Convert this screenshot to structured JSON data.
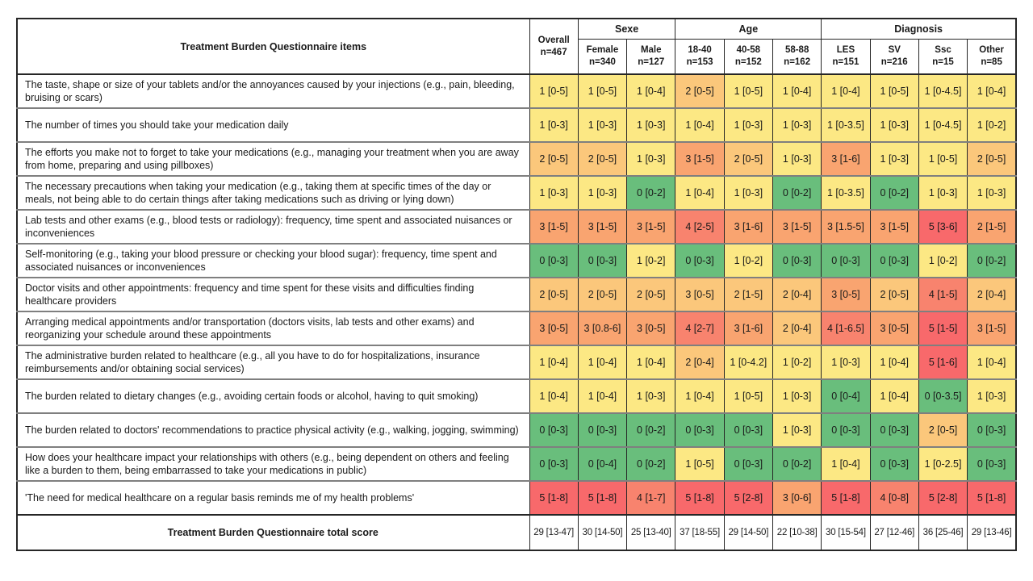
{
  "chart_data": {
    "type": "table",
    "subtype": "heatmap-table",
    "title": "Treatment Burden Questionnaire items",
    "palette": {
      "g": "#69BE7C",
      "y": "#FCE884",
      "lo": "#FBC77B",
      "o": "#F9A470",
      "s": "#F8836E",
      "r": "#F8696B",
      "w": "#FFFFFF"
    },
    "header": {
      "items_col": "Treatment Burden Questionnaire items",
      "overall": {
        "label": "Overall",
        "n": "n=467"
      },
      "groups": [
        {
          "label": "Sexe",
          "columns": [
            {
              "label": "Female",
              "n": "n=340"
            },
            {
              "label": "Male",
              "n": "n=127"
            }
          ]
        },
        {
          "label": "Age",
          "columns": [
            {
              "label": "18-40",
              "n": "n=153"
            },
            {
              "label": "40-58",
              "n": "n=152"
            },
            {
              "label": "58-88",
              "n": "n=162"
            }
          ]
        },
        {
          "label": "Diagnosis",
          "columns": [
            {
              "label": "LES",
              "n": "n=151"
            },
            {
              "label": "SV",
              "n": "n=216"
            },
            {
              "label": "Ssc",
              "n": "n=15"
            },
            {
              "label": "Other",
              "n": "n=85"
            }
          ]
        }
      ]
    },
    "rows": [
      {
        "item": "The taste, shape or size of your tablets and/or the annoyances caused by your injections (e.g., pain, bleeding, bruising or scars)",
        "values": [
          "1 [0-5]",
          "1 [0-5]",
          "1 [0-4]",
          "2 [0-5]",
          "1 [0-5]",
          "1 [0-4]",
          "1 [0-4]",
          "1 [0-5]",
          "1 [0-4.5]",
          "1 [0-4]"
        ],
        "colors": [
          "y",
          "y",
          "y",
          "lo",
          "y",
          "y",
          "y",
          "y",
          "y",
          "y"
        ]
      },
      {
        "item": "The number of times you should take your medication daily",
        "values": [
          "1 [0-3]",
          "1 [0-3]",
          "1 [0-3]",
          "1 [0-4]",
          "1 [0-3]",
          "1 [0-3]",
          "1 [0-3.5]",
          "1 [0-3]",
          "1 [0-4.5]",
          "1 [0-2]"
        ],
        "colors": [
          "y",
          "y",
          "y",
          "y",
          "y",
          "y",
          "y",
          "y",
          "y",
          "y"
        ]
      },
      {
        "item": "The efforts you make not to forget to take your medications (e.g., managing your treatment when you are away from home, preparing and using pillboxes)",
        "values": [
          "2 [0-5]",
          "2 [0-5]",
          "1 [0-3]",
          "3 [1-5]",
          "2 [0-5]",
          "1 [0-3]",
          "3 [1-6]",
          "1 [0-3]",
          "1 [0-5]",
          "2 [0-5]"
        ],
        "colors": [
          "lo",
          "lo",
          "y",
          "o",
          "lo",
          "y",
          "o",
          "y",
          "y",
          "lo"
        ]
      },
      {
        "item": "The necessary precautions when taking your medication (e.g., taking them at specific times of the day or meals, not being able to do certain things after taking medications such as driving or lying down)",
        "values": [
          "1 [0-3]",
          "1 [0-3]",
          "0 [0-2]",
          "1 [0-4]",
          "1 [0-3]",
          "0 [0-2]",
          "1 [0-3.5]",
          "0 [0-2]",
          "1 [0-3]",
          "1 [0-3]"
        ],
        "colors": [
          "y",
          "y",
          "g",
          "y",
          "y",
          "g",
          "y",
          "g",
          "y",
          "y"
        ]
      },
      {
        "item": "Lab tests and other exams (e.g., blood tests or radiology): frequency, time spent and associated nuisances or inconveniences",
        "values": [
          "3 [1-5]",
          "3 [1-5]",
          "3 [1-5]",
          "4 [2-5]",
          "3 [1-6]",
          "3 [1-5]",
          "3 [1.5-5]",
          "3 [1-5]",
          "5 [3-6]",
          "2 [1-5]"
        ],
        "colors": [
          "o",
          "o",
          "o",
          "s",
          "o",
          "o",
          "o",
          "o",
          "r",
          "o"
        ]
      },
      {
        "item": "Self-monitoring (e.g., taking your blood pressure or checking your blood sugar): frequency, time spent and associated nuisances or inconveniences",
        "values": [
          "0 [0-3]",
          "0 [0-3]",
          "1 [0-2]",
          "0 [0-3]",
          "1 [0-2]",
          "0 [0-3]",
          "0 [0-3]",
          "0 [0-3]",
          "1 [0-2]",
          "0 [0-2]"
        ],
        "colors": [
          "g",
          "g",
          "y",
          "g",
          "y",
          "g",
          "g",
          "g",
          "y",
          "g"
        ]
      },
      {
        "item": "Doctor visits and other appointments: frequency and time spent for these visits and difficulties finding healthcare providers",
        "values": [
          "2 [0-5]",
          "2 [0-5]",
          "2 [0-5]",
          "3 [0-5]",
          "2 [1-5]",
          "2 [0-4]",
          "3 [0-5]",
          "2 [0-5]",
          "4 [1-5]",
          "2 [0-4]"
        ],
        "colors": [
          "lo",
          "lo",
          "lo",
          "lo",
          "lo",
          "lo",
          "o",
          "lo",
          "s",
          "lo"
        ]
      },
      {
        "item": "Arranging medical appointments and/or transportation (doctors visits, lab tests and other exams) and reorganizing your schedule around these appointments",
        "values": [
          "3 [0-5]",
          "3 [0.8-6]",
          "3 [0-5]",
          "4 [2-7]",
          "3 [1-6]",
          "2 [0-4]",
          "4 [1-6.5]",
          "3 [0-5]",
          "5 [1-5]",
          "3 [1-5]"
        ],
        "colors": [
          "o",
          "o",
          "o",
          "s",
          "o",
          "lo",
          "s",
          "o",
          "r",
          "o"
        ]
      },
      {
        "item": "The administrative burden related to healthcare (e.g., all you have to do for hospitalizations, insurance reimbursements and/or obtaining social services)",
        "values": [
          "1 [0-4]",
          "1 [0-4]",
          "1 [0-4]",
          "2 [0-4]",
          "1 [0-4.2]",
          "1 [0-2]",
          "1 [0-3]",
          "1 [0-4]",
          "5 [1-6]",
          "1 [0-4]"
        ],
        "colors": [
          "y",
          "y",
          "y",
          "lo",
          "y",
          "y",
          "y",
          "y",
          "r",
          "y"
        ]
      },
      {
        "item": "The burden related to dietary changes (e.g., avoiding certain foods or alcohol, having to quit smoking)",
        "values": [
          "1 [0-4]",
          "1 [0-4]",
          "1 [0-3]",
          "1 [0-4]",
          "1 [0-5]",
          "1 [0-3]",
          "0 [0-4]",
          "1 [0-4]",
          "0 [0-3.5]",
          "1 [0-3]"
        ],
        "colors": [
          "y",
          "y",
          "y",
          "y",
          "y",
          "y",
          "g",
          "y",
          "g",
          "y"
        ]
      },
      {
        "item": "The burden related to doctors' recommendations to practice physical activity (e.g., walking, jogging, swimming)",
        "values": [
          "0 [0-3]",
          "0 [0-3]",
          "0 [0-2]",
          "0 [0-3]",
          "0 [0-3]",
          "1 [0-3]",
          "0 [0-3]",
          "0 [0-3]",
          "2 [0-5]",
          "0 [0-3]"
        ],
        "colors": [
          "g",
          "g",
          "g",
          "g",
          "g",
          "y",
          "g",
          "g",
          "lo",
          "g"
        ]
      },
      {
        "item": "How does your healthcare impact your relationships with others (e.g., being dependent on others and feeling like a burden to them, being embarrassed to take your medications in public)",
        "values": [
          "0 [0-3]",
          "0 [0-4]",
          "0 [0-2]",
          "1 [0-5]",
          "0 [0-3]",
          "0 [0-2]",
          "1 [0-4]",
          "0 [0-3]",
          "1 [0-2.5]",
          "0 [0-3]"
        ],
        "colors": [
          "g",
          "g",
          "g",
          "y",
          "g",
          "g",
          "y",
          "g",
          "y",
          "g"
        ]
      },
      {
        "item": "'The need for medical healthcare on a regular basis reminds me of my health problems'",
        "values": [
          "5 [1-8]",
          "5 [1-8]",
          "4 [1-7]",
          "5 [1-8]",
          "5 [2-8]",
          "3 [0-6]",
          "5 [1-8]",
          "4 [0-8]",
          "5 [2-8]",
          "5 [1-8]"
        ],
        "colors": [
          "r",
          "r",
          "s",
          "r",
          "r",
          "o",
          "r",
          "s",
          "r",
          "r"
        ]
      }
    ],
    "total_row": {
      "label": "Treatment Burden Questionnaire total score",
      "values": [
        "29 [13-47]",
        "30 [14-50]",
        "25 [13-40]",
        "37 [18-55]",
        "29 [14-50]",
        "22 [10-38]",
        "30 [15-54]",
        "27 [12-46]",
        "36 [25-46]",
        "29 [13-46]"
      ],
      "colors": [
        "w",
        "w",
        "w",
        "w",
        "w",
        "w",
        "w",
        "w",
        "w",
        "w"
      ]
    }
  }
}
